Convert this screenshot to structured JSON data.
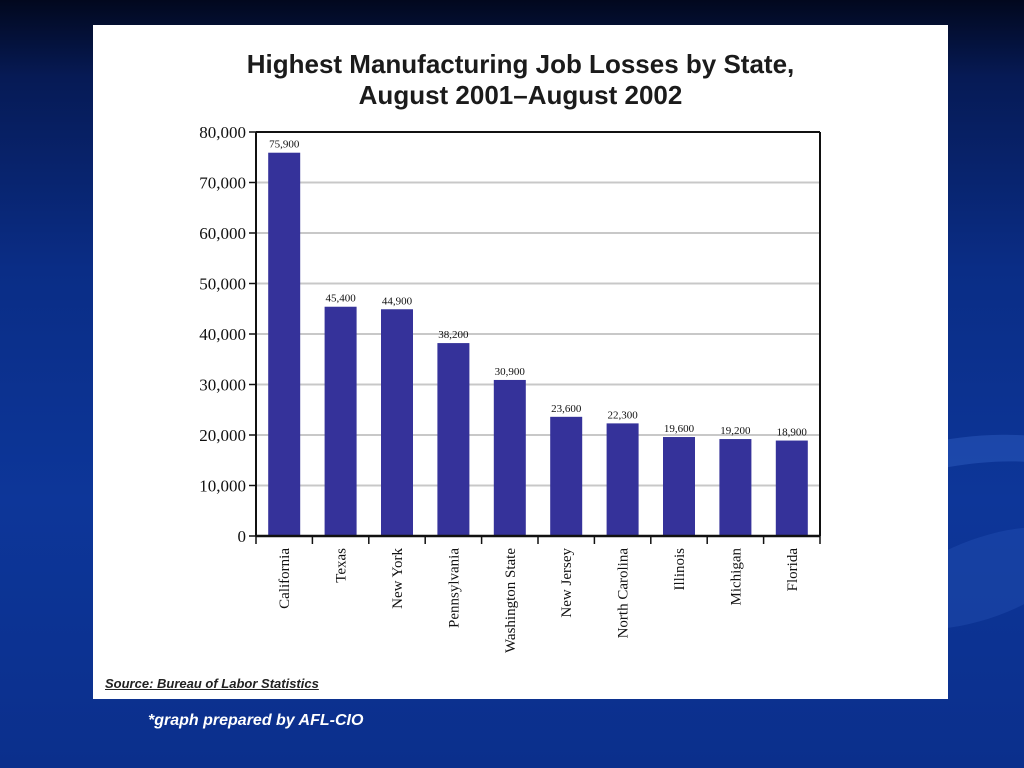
{
  "chart_data": {
    "type": "bar",
    "title": "Highest Manufacturing Job Losses by State,",
    "subtitle": "August 2001–August 2002",
    "categories": [
      "California",
      "Texas",
      "New York",
      "Pennsylvania",
      "Washington State",
      "New Jersey",
      "North Carolina",
      "Illinois",
      "Michigan",
      "Florida"
    ],
    "values": [
      75900,
      45400,
      44900,
      38200,
      30900,
      23600,
      22300,
      19600,
      19200,
      18900
    ],
    "value_labels": [
      "75,900",
      "45,400",
      "44,900",
      "38,200",
      "30,900",
      "23,600",
      "22,300",
      "19,600",
      "19,200",
      "18,900"
    ],
    "yticks": [
      0,
      10000,
      20000,
      30000,
      40000,
      50000,
      60000,
      70000,
      80000
    ],
    "ytick_labels": [
      "0",
      "10,000",
      "20,000",
      "30,000",
      "40,000",
      "50,000",
      "60,000",
      "70,000",
      "80,000"
    ],
    "ylim": [
      0,
      80000
    ],
    "xlabel": "",
    "ylabel": "",
    "grid": true,
    "bar_color": "#35329a"
  },
  "source_text": "Source: Bureau of Labor Statistics",
  "credit_text": "*graph prepared by AFL-CIO",
  "colors": {
    "background": "#0b2f8c",
    "panel": "#ffffff",
    "bar": "#35329a"
  }
}
